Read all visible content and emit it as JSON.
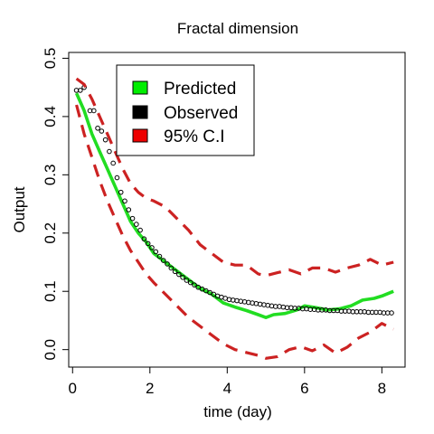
{
  "chart_data": {
    "type": "line",
    "title": "Fractal dimension",
    "xlabel": "time (day)",
    "ylabel": "Output",
    "xlim": [
      -0.1,
      8.6
    ],
    "ylim": [
      -0.03,
      0.51
    ],
    "xticks": [
      0,
      2,
      4,
      6,
      8
    ],
    "yticks": [
      0.0,
      0.1,
      0.2,
      0.3,
      0.4,
      0.5
    ],
    "xtick_labels": [
      "0",
      "2",
      "4",
      "6",
      "8"
    ],
    "ytick_labels": [
      "0.0",
      "0.1",
      "0.2",
      "0.3",
      "0.4",
      "0.5"
    ],
    "legend": {
      "position": "top-left",
      "entries": [
        {
          "label": "Predicted",
          "color": "#00ee00"
        },
        {
          "label": "Observed",
          "color": "#000000"
        },
        {
          "label": "95% C.I",
          "color": "#ee0000"
        }
      ]
    },
    "series": [
      {
        "name": "Predicted",
        "style": "line",
        "color": "#22dd22",
        "x": [
          0.1,
          0.3,
          0.5,
          0.7,
          0.9,
          1.1,
          1.3,
          1.5,
          1.7,
          1.9,
          2.1,
          2.4,
          2.7,
          3.0,
          3.3,
          3.6,
          3.9,
          4.2,
          4.5,
          4.8,
          5.0,
          5.2,
          5.5,
          5.8,
          6.0,
          6.3,
          6.6,
          6.9,
          7.2,
          7.5,
          7.8,
          8.0,
          8.3
        ],
        "y": [
          0.44,
          0.41,
          0.37,
          0.34,
          0.31,
          0.28,
          0.25,
          0.22,
          0.2,
          0.185,
          0.165,
          0.15,
          0.135,
          0.12,
          0.105,
          0.095,
          0.08,
          0.073,
          0.067,
          0.06,
          0.055,
          0.06,
          0.062,
          0.068,
          0.075,
          0.072,
          0.068,
          0.07,
          0.075,
          0.085,
          0.088,
          0.092,
          0.1
        ]
      },
      {
        "name": "Observed",
        "style": "points",
        "color": "#000000",
        "x": [
          0.1,
          0.2,
          0.3,
          0.45,
          0.55,
          0.65,
          0.75,
          0.85,
          0.95,
          1.05,
          1.15,
          1.25,
          1.35,
          1.45,
          1.55,
          1.65,
          1.75,
          1.85,
          1.95,
          2.05,
          2.15,
          2.25,
          2.35,
          2.45,
          2.55,
          2.65,
          2.75,
          2.85,
          2.95,
          3.05,
          3.15,
          3.25,
          3.35,
          3.45,
          3.55,
          3.65,
          3.75,
          3.85,
          3.95,
          4.05,
          4.15,
          4.25,
          4.35,
          4.45,
          4.55,
          4.65,
          4.75,
          4.85,
          4.95,
          5.05,
          5.15,
          5.25,
          5.35,
          5.45,
          5.55,
          5.65,
          5.75,
          5.85,
          5.95,
          6.05,
          6.15,
          6.25,
          6.35,
          6.45,
          6.55,
          6.65,
          6.75,
          6.85,
          6.95,
          7.05,
          7.15,
          7.25,
          7.35,
          7.45,
          7.55,
          7.65,
          7.75,
          7.85,
          7.95,
          8.05,
          8.15,
          8.25
        ],
        "y": [
          0.445,
          0.445,
          0.45,
          0.41,
          0.41,
          0.38,
          0.375,
          0.36,
          0.34,
          0.32,
          0.295,
          0.27,
          0.255,
          0.24,
          0.225,
          0.215,
          0.205,
          0.19,
          0.182,
          0.175,
          0.168,
          0.16,
          0.153,
          0.147,
          0.14,
          0.134,
          0.129,
          0.124,
          0.119,
          0.115,
          0.111,
          0.107,
          0.104,
          0.101,
          0.098,
          0.095,
          0.092,
          0.09,
          0.088,
          0.086,
          0.085,
          0.084,
          0.083,
          0.082,
          0.081,
          0.08,
          0.079,
          0.078,
          0.077,
          0.076,
          0.075,
          0.074,
          0.074,
          0.073,
          0.072,
          0.072,
          0.071,
          0.071,
          0.07,
          0.07,
          0.069,
          0.069,
          0.068,
          0.068,
          0.068,
          0.067,
          0.067,
          0.067,
          0.066,
          0.066,
          0.066,
          0.065,
          0.065,
          0.065,
          0.065,
          0.064,
          0.064,
          0.064,
          0.064,
          0.063,
          0.063,
          0.063
        ]
      },
      {
        "name": "95% C.I upper",
        "style": "dashed",
        "color": "#cc2222",
        "x": [
          0.1,
          0.3,
          0.5,
          0.7,
          0.9,
          1.1,
          1.3,
          1.5,
          1.7,
          1.9,
          2.1,
          2.4,
          2.7,
          3.0,
          3.3,
          3.6,
          3.9,
          4.2,
          4.5,
          4.8,
          5.0,
          5.3,
          5.6,
          5.9,
          6.2,
          6.5,
          6.8,
          7.1,
          7.4,
          7.7,
          8.0,
          8.3
        ],
        "y": [
          0.465,
          0.455,
          0.43,
          0.4,
          0.37,
          0.34,
          0.31,
          0.285,
          0.27,
          0.26,
          0.255,
          0.245,
          0.225,
          0.205,
          0.18,
          0.165,
          0.15,
          0.145,
          0.145,
          0.13,
          0.127,
          0.132,
          0.137,
          0.13,
          0.14,
          0.14,
          0.133,
          0.14,
          0.145,
          0.155,
          0.145,
          0.15
        ]
      },
      {
        "name": "95% C.I lower",
        "style": "dashed",
        "color": "#cc2222",
        "x": [
          0.1,
          0.3,
          0.5,
          0.7,
          0.9,
          1.1,
          1.3,
          1.5,
          1.7,
          1.9,
          2.1,
          2.4,
          2.7,
          3.0,
          3.3,
          3.6,
          3.9,
          4.2,
          4.5,
          4.8,
          5.0,
          5.3,
          5.6,
          5.9,
          6.2,
          6.5,
          6.8,
          7.1,
          7.4,
          7.7,
          8.0,
          8.3
        ],
        "y": [
          0.42,
          0.37,
          0.33,
          0.29,
          0.255,
          0.225,
          0.195,
          0.17,
          0.15,
          0.13,
          0.115,
          0.095,
          0.075,
          0.055,
          0.04,
          0.025,
          0.01,
          0.0,
          -0.005,
          -0.01,
          -0.015,
          -0.012,
          0.0,
          0.005,
          -0.002,
          0.008,
          -0.006,
          0.004,
          0.02,
          0.03,
          0.045,
          0.035
        ]
      }
    ]
  }
}
